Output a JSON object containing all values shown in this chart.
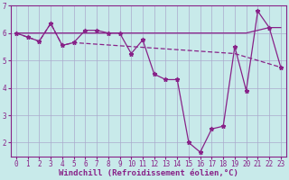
{
  "xlabel": "Windchill (Refroidissement éolien,°C)",
  "background_color": "#c8eaea",
  "grid_color": "#aaaacc",
  "line_color": "#882288",
  "xlim": [
    -0.5,
    23.5
  ],
  "ylim": [
    1.5,
    7.0
  ],
  "xticks": [
    0,
    1,
    2,
    3,
    4,
    5,
    6,
    7,
    8,
    9,
    10,
    11,
    12,
    13,
    14,
    15,
    16,
    17,
    18,
    19,
    20,
    21,
    22,
    23
  ],
  "yticks": [
    2,
    3,
    4,
    5,
    6,
    7
  ],
  "series1_x": [
    0,
    1,
    2,
    3,
    4,
    5,
    6,
    7,
    8,
    9,
    10,
    11,
    12,
    13,
    14,
    15,
    16,
    17,
    18,
    19,
    20,
    21,
    22,
    23
  ],
  "series1_y": [
    6.0,
    5.85,
    5.7,
    6.35,
    5.55,
    5.65,
    6.1,
    6.1,
    6.0,
    6.0,
    5.25,
    5.75,
    4.5,
    4.3,
    4.3,
    2.0,
    1.65,
    2.5,
    2.6,
    5.5,
    3.9,
    6.8,
    6.2,
    4.75
  ],
  "series2_x": [
    0,
    10,
    14,
    20,
    22,
    23
  ],
  "series2_y": [
    6.0,
    6.0,
    6.0,
    6.0,
    6.2,
    6.2
  ],
  "series3_x": [
    0,
    1,
    2,
    3,
    4,
    5,
    19,
    23
  ],
  "series3_y": [
    6.0,
    5.85,
    5.7,
    6.35,
    5.55,
    5.65,
    5.25,
    4.75
  ],
  "tick_fontsize": 5.5,
  "xlabel_fontsize": 6.5
}
